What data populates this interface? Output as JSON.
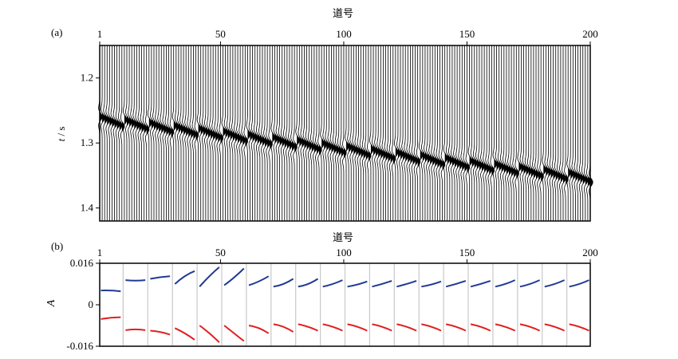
{
  "figure": {
    "panel_a": {
      "label": "(a)",
      "xlabel": "道号",
      "ylabel_t": "t",
      "ylabel_unit": " / s"
    },
    "panel_b": {
      "label": "(b)",
      "xlabel": "道号",
      "ylabel": "A"
    }
  },
  "chart_data": [
    {
      "type": "wiggle",
      "title": "",
      "xlabel": "道号",
      "ylabel": "t / s",
      "xlim": [
        1,
        200
      ],
      "ylim": [
        1.15,
        1.42
      ],
      "x_ticks": [
        1,
        50,
        100,
        150,
        200
      ],
      "y_ticks": [
        1.2,
        1.3,
        1.4
      ],
      "traces": 200,
      "group_size": 10,
      "event_time_start": 1.265,
      "event_time_end": 1.355,
      "color": "#000000"
    },
    {
      "type": "line",
      "title": "",
      "xlabel": "道号",
      "ylabel": "A",
      "xlim": [
        1,
        200
      ],
      "ylim": [
        -0.016,
        0.016
      ],
      "x_ticks": [
        1,
        50,
        100,
        150,
        200
      ],
      "y_ticks": [
        0.016,
        0,
        -0.016
      ],
      "y_tick_labels": [
        "0.016",
        "0",
        "-0.016"
      ],
      "group_size": 10,
      "series": [
        {
          "color": "#1f3a93",
          "segments": [
            [
              0.0055,
              0.0055,
              0.0052
            ],
            [
              0.0095,
              0.0093,
              0.0095
            ],
            [
              0.01,
              0.0106,
              0.011
            ],
            [
              0.008,
              0.011,
              0.013
            ],
            [
              0.007,
              0.011,
              0.0145
            ],
            [
              0.0075,
              0.0105,
              0.014
            ],
            [
              0.0075,
              0.009,
              0.011
            ],
            [
              0.007,
              0.008,
              0.01
            ],
            [
              0.007,
              0.008,
              0.01
            ],
            [
              0.007,
              0.008,
              0.0095
            ],
            [
              0.007,
              0.0078,
              0.009
            ],
            [
              0.007,
              0.008,
              0.0092
            ],
            [
              0.007,
              0.008,
              0.0092
            ],
            [
              0.007,
              0.0078,
              0.009
            ],
            [
              0.007,
              0.008,
              0.0092
            ],
            [
              0.007,
              0.008,
              0.0092
            ],
            [
              0.007,
              0.008,
              0.0095
            ],
            [
              0.007,
              0.008,
              0.0095
            ],
            [
              0.007,
              0.008,
              0.0095
            ],
            [
              0.007,
              0.008,
              0.0095
            ]
          ]
        },
        {
          "color": "#e02020",
          "segments": [
            [
              -0.0055,
              -0.005,
              -0.0048
            ],
            [
              -0.0098,
              -0.0095,
              -0.0098
            ],
            [
              -0.01,
              -0.0105,
              -0.0115
            ],
            [
              -0.009,
              -0.011,
              -0.0135
            ],
            [
              -0.008,
              -0.011,
              -0.0145
            ],
            [
              -0.008,
              -0.011,
              -0.014
            ],
            [
              -0.008,
              -0.009,
              -0.011
            ],
            [
              -0.0075,
              -0.0085,
              -0.0105
            ],
            [
              -0.0075,
              -0.0085,
              -0.01
            ],
            [
              -0.0075,
              -0.0085,
              -0.01
            ],
            [
              -0.0075,
              -0.0085,
              -0.01
            ],
            [
              -0.0075,
              -0.0085,
              -0.01
            ],
            [
              -0.0075,
              -0.0085,
              -0.01
            ],
            [
              -0.0075,
              -0.0085,
              -0.01
            ],
            [
              -0.0075,
              -0.0085,
              -0.01
            ],
            [
              -0.0075,
              -0.0085,
              -0.01
            ],
            [
              -0.0075,
              -0.0085,
              -0.01
            ],
            [
              -0.0075,
              -0.0085,
              -0.01
            ],
            [
              -0.0075,
              -0.0085,
              -0.01
            ],
            [
              -0.0075,
              -0.0085,
              -0.01
            ]
          ]
        }
      ]
    }
  ]
}
